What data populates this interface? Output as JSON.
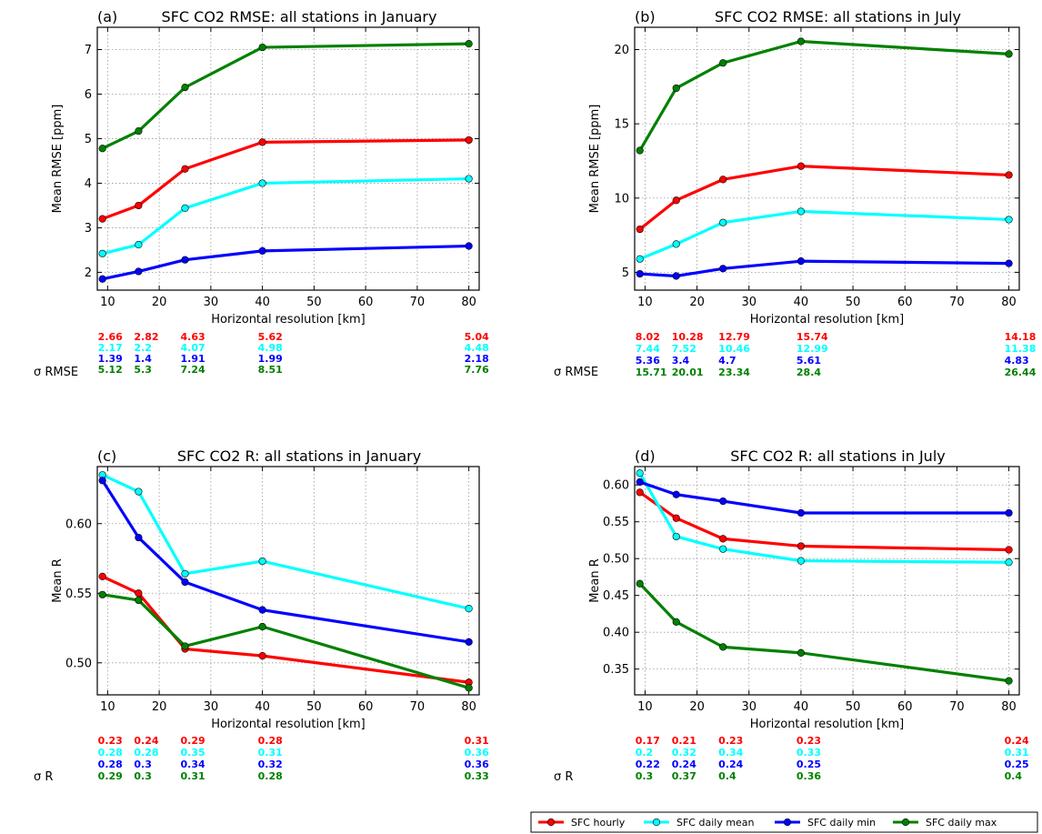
{
  "chart_data": [
    {
      "type": "line",
      "letter": "(a)",
      "title": "SFC CO2 RMSE: all stations in January",
      "xlabel": "Horizontal resolution [km]",
      "ylabel": "Mean RMSE [ppm]",
      "x": [
        9,
        16,
        25,
        40,
        80
      ],
      "xlim": [
        8,
        82
      ],
      "ylim": [
        1.6,
        7.5
      ],
      "xticks": [
        10,
        20,
        30,
        40,
        50,
        60,
        70,
        80
      ],
      "yticks": [
        2,
        3,
        4,
        5,
        6,
        7
      ],
      "grid": true,
      "series": [
        {
          "name": "SFC hourly",
          "color": "#ff0000",
          "values": [
            3.2,
            3.5,
            4.32,
            4.92,
            4.97
          ],
          "sigma": [
            "2.66",
            "2.82",
            "4.63",
            "5.62",
            "5.04"
          ]
        },
        {
          "name": "SFC daily mean",
          "color": "#00ffff",
          "values": [
            2.42,
            2.62,
            3.44,
            4.0,
            4.1
          ],
          "sigma": [
            "2.17",
            "2.2",
            "4.07",
            "4.98",
            "4.48"
          ]
        },
        {
          "name": "SFC daily min",
          "color": "#0000ff",
          "values": [
            1.85,
            2.02,
            2.28,
            2.48,
            2.59
          ],
          "sigma": [
            "1.39",
            "1.4",
            "1.91",
            "1.99",
            "2.18"
          ]
        },
        {
          "name": "SFC daily max",
          "color": "#008000",
          "values": [
            4.78,
            5.17,
            6.15,
            7.05,
            7.13
          ],
          "sigma": [
            "5.12",
            "5.3",
            "7.24",
            "8.51",
            "7.76"
          ]
        }
      ],
      "sigma_label": "σ RMSE"
    },
    {
      "type": "line",
      "letter": "(b)",
      "title": "SFC CO2 RMSE: all stations in July",
      "xlabel": "Horizontal resolution [km]",
      "ylabel": "Mean RMSE [ppm]",
      "x": [
        9,
        16,
        25,
        40,
        80
      ],
      "xlim": [
        8,
        82
      ],
      "ylim": [
        3.8,
        21.5
      ],
      "xticks": [
        10,
        20,
        30,
        40,
        50,
        60,
        70,
        80
      ],
      "yticks": [
        5,
        10,
        15,
        20
      ],
      "grid": true,
      "series": [
        {
          "name": "SFC hourly",
          "color": "#ff0000",
          "values": [
            7.9,
            9.85,
            11.25,
            12.15,
            11.55
          ],
          "sigma": [
            "8.02",
            "10.28",
            "12.79",
            "15.74",
            "14.18"
          ]
        },
        {
          "name": "SFC daily mean",
          "color": "#00ffff",
          "values": [
            5.9,
            6.9,
            8.35,
            9.1,
            8.55
          ],
          "sigma": [
            "7.44",
            "7.52",
            "10.46",
            "12.99",
            "11.38"
          ]
        },
        {
          "name": "SFC daily min",
          "color": "#0000ff",
          "values": [
            4.9,
            4.75,
            5.25,
            5.75,
            5.6
          ],
          "sigma": [
            "5.36",
            "3.4",
            "4.7",
            "5.61",
            "4.83"
          ]
        },
        {
          "name": "SFC daily max",
          "color": "#008000",
          "values": [
            13.2,
            17.4,
            19.1,
            20.55,
            19.7
          ],
          "sigma": [
            "15.71",
            "20.01",
            "23.34",
            "28.4",
            "26.44"
          ]
        }
      ],
      "sigma_label": "σ RMSE"
    },
    {
      "type": "line",
      "letter": "(c)",
      "title": "SFC CO2 R: all stations in January",
      "xlabel": "Horizontal resolution [km]",
      "ylabel": "Mean R",
      "x": [
        9,
        16,
        25,
        40,
        80
      ],
      "xlim": [
        8,
        82
      ],
      "ylim": [
        0.477,
        0.641
      ],
      "xticks": [
        10,
        20,
        30,
        40,
        50,
        60,
        70,
        80
      ],
      "yticks": [
        0.5,
        0.55,
        0.6
      ],
      "ytick_labels": [
        "0.50",
        "0.55",
        "0.60"
      ],
      "grid": true,
      "series": [
        {
          "name": "SFC hourly",
          "color": "#ff0000",
          "values": [
            0.562,
            0.55,
            0.51,
            0.505,
            0.486
          ],
          "sigma": [
            "0.23",
            "0.24",
            "0.29",
            "0.28",
            "0.31"
          ]
        },
        {
          "name": "SFC daily mean",
          "color": "#00ffff",
          "values": [
            0.635,
            0.623,
            0.564,
            0.573,
            0.539
          ],
          "sigma": [
            "0.28",
            "0.28",
            "0.35",
            "0.31",
            "0.36"
          ]
        },
        {
          "name": "SFC daily min",
          "color": "#0000ff",
          "values": [
            0.631,
            0.59,
            0.558,
            0.538,
            0.515
          ],
          "sigma": [
            "0.28",
            "0.3",
            "0.34",
            "0.32",
            "0.36"
          ]
        },
        {
          "name": "SFC daily max",
          "color": "#008000",
          "values": [
            0.549,
            0.545,
            0.512,
            0.526,
            0.482
          ],
          "sigma": [
            "0.29",
            "0.3",
            "0.31",
            "0.28",
            "0.33"
          ]
        }
      ],
      "sigma_label": "σ R"
    },
    {
      "type": "line",
      "letter": "(d)",
      "title": "SFC CO2 R: all stations in July",
      "xlabel": "Horizontal resolution [km]",
      "ylabel": "Mean R",
      "x": [
        9,
        16,
        25,
        40,
        80
      ],
      "xlim": [
        8,
        82
      ],
      "ylim": [
        0.315,
        0.625
      ],
      "xticks": [
        10,
        20,
        30,
        40,
        50,
        60,
        70,
        80
      ],
      "yticks": [
        0.35,
        0.4,
        0.45,
        0.5,
        0.55,
        0.6
      ],
      "ytick_labels": [
        "0.35",
        "0.40",
        "0.45",
        "0.50",
        "0.55",
        "0.60"
      ],
      "grid": true,
      "series": [
        {
          "name": "SFC hourly",
          "color": "#ff0000",
          "values": [
            0.59,
            0.555,
            0.527,
            0.517,
            0.512
          ],
          "sigma": [
            "0.17",
            "0.21",
            "0.23",
            "0.23",
            "0.24"
          ]
        },
        {
          "name": "SFC daily mean",
          "color": "#00ffff",
          "values": [
            0.616,
            0.53,
            0.513,
            0.497,
            0.495
          ],
          "sigma": [
            "0.2",
            "0.32",
            "0.34",
            "0.33",
            "0.31"
          ]
        },
        {
          "name": "SFC daily min",
          "color": "#0000ff",
          "values": [
            0.604,
            0.587,
            0.578,
            0.562,
            0.562
          ],
          "sigma": [
            "0.22",
            "0.24",
            "0.24",
            "0.25",
            "0.25"
          ]
        },
        {
          "name": "SFC daily max",
          "color": "#008000",
          "values": [
            0.466,
            0.414,
            0.38,
            0.372,
            0.334
          ],
          "sigma": [
            "0.3",
            "0.37",
            "0.4",
            "0.36",
            "0.4"
          ]
        }
      ],
      "sigma_label": "σ R"
    }
  ],
  "legend": {
    "placement": "bottom-right",
    "entries": [
      {
        "label": "SFC hourly",
        "color": "#ff0000"
      },
      {
        "label": "SFC daily mean",
        "color": "#00ffff"
      },
      {
        "label": "SFC daily min",
        "color": "#0000ff"
      },
      {
        "label": "SFC daily max",
        "color": "#008000"
      }
    ]
  }
}
